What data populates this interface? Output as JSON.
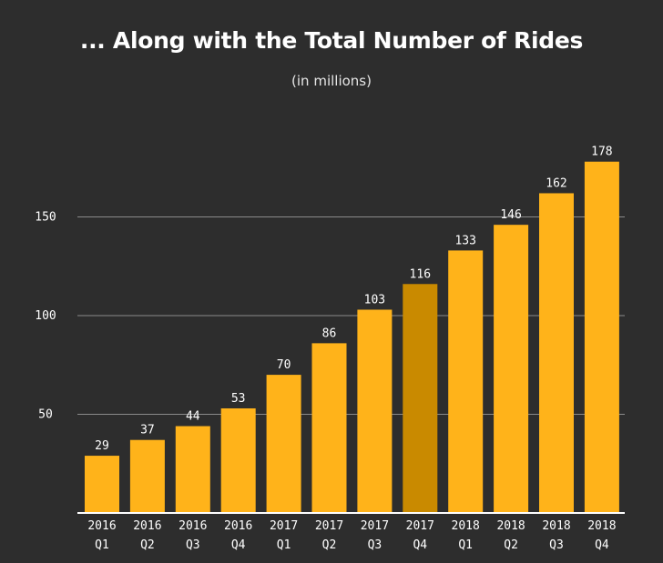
{
  "chart_data": {
    "type": "bar",
    "title": "... Along with the Total Number of Rides",
    "subtitle": "(in millions)",
    "xlabel": "",
    "ylabel": "",
    "categories": [
      [
        "2016",
        "Q1"
      ],
      [
        "2016",
        "Q2"
      ],
      [
        "2016",
        "Q3"
      ],
      [
        "2016",
        "Q4"
      ],
      [
        "2017",
        "Q1"
      ],
      [
        "2017",
        "Q2"
      ],
      [
        "2017",
        "Q3"
      ],
      [
        "2017",
        "Q4"
      ],
      [
        "2018",
        "Q1"
      ],
      [
        "2018",
        "Q2"
      ],
      [
        "2018",
        "Q3"
      ],
      [
        "2018",
        "Q4"
      ]
    ],
    "values": [
      29,
      37,
      44,
      53,
      70,
      86,
      103,
      116,
      133,
      146,
      162,
      178
    ],
    "highlighted_index": 7,
    "ylim": [
      0,
      190
    ],
    "yticks": [
      50,
      100,
      150
    ],
    "grid": true,
    "legend": "none"
  },
  "colors": {
    "background": "#2d2d2d",
    "bar": "#ffb31a",
    "bar_highlight": "#c98a00",
    "text": "#ffffff",
    "grid": "#8a8a8a"
  }
}
